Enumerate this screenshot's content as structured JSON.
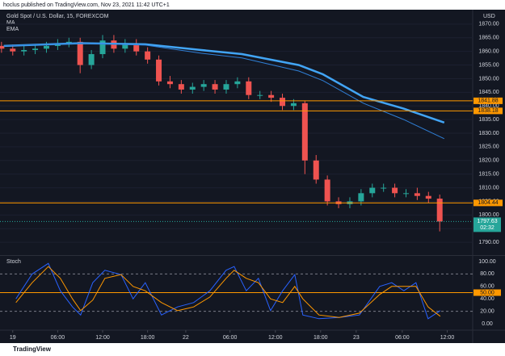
{
  "header": "hoclus published on TradingView.com, Nov 23, 2021 11:42 UTC+1",
  "footer": "TradingView",
  "chart_data": [
    {
      "type": "candlestick",
      "title": "Gold Spot / U.S. Dollar, 15, FOREXCOM",
      "y_axis_label": "USD",
      "up_color": "#26a69a",
      "down_color": "#ef5350",
      "xlim": [
        -1.7,
        61.4
      ],
      "ylim": [
        1785.6,
        1874.7
      ],
      "yticks": [
        {
          "value": 1790,
          "label": "1790.00"
        },
        {
          "value": 1795,
          "label": "1795.00"
        },
        {
          "value": 1800,
          "label": "1800.00"
        },
        {
          "value": 1805,
          "label": "1805.00"
        },
        {
          "value": 1810,
          "label": "1810.00"
        },
        {
          "value": 1815,
          "label": "1815.00"
        },
        {
          "value": 1820,
          "label": "1820.00"
        },
        {
          "value": 1825,
          "label": "1825.00"
        },
        {
          "value": 1830,
          "label": "1830.00"
        },
        {
          "value": 1835,
          "label": "1835.00"
        },
        {
          "value": 1840,
          "label": "1840.00"
        },
        {
          "value": 1845,
          "label": "1845.00"
        },
        {
          "value": 1850,
          "label": "1850.00"
        },
        {
          "value": 1855,
          "label": "1855.00"
        },
        {
          "value": 1860,
          "label": "1860.00"
        },
        {
          "value": 1865,
          "label": "1865.00"
        },
        {
          "value": 1870,
          "label": "1870.00"
        }
      ],
      "x": [
        -1.5,
        0,
        1.5,
        3,
        4.5,
        6,
        7.5,
        9,
        10.5,
        12,
        13.5,
        15,
        16.5,
        18,
        19.5,
        21,
        22.5,
        24,
        25.5,
        27,
        28.5,
        30,
        31.5,
        33,
        34.5,
        36,
        37.5,
        39,
        40.5,
        42,
        43.5,
        45,
        46.5,
        48,
        49.5,
        51,
        52.5,
        54,
        55.5,
        57
      ],
      "open": [
        1862,
        1861,
        1860,
        1860.5,
        1861,
        1862,
        1863,
        1863.5,
        1855,
        1859,
        1864,
        1861,
        1863,
        1860,
        1857,
        1849,
        1848,
        1846,
        1847,
        1848,
        1846,
        1848,
        1849,
        1844,
        1844,
        1843,
        1840,
        1841,
        1820,
        1813,
        1805,
        1804,
        1805,
        1808,
        1810,
        1810,
        1808,
        1808,
        1807,
        1806
      ],
      "high": [
        1863.5,
        1862.5,
        1862,
        1862.5,
        1863.5,
        1864.5,
        1865,
        1865,
        1860.5,
        1866,
        1866,
        1864.5,
        1864.5,
        1861.5,
        1858.5,
        1851,
        1849.5,
        1848.5,
        1849.5,
        1849.5,
        1849.5,
        1850.5,
        1850.5,
        1845.5,
        1845.5,
        1844.5,
        1842.5,
        1842,
        1822,
        1814.5,
        1806.5,
        1806.5,
        1809.5,
        1811.5,
        1811.5,
        1811.5,
        1809.5,
        1810,
        1808.5,
        1807.5
      ],
      "low": [
        1859.5,
        1858.5,
        1858.5,
        1859,
        1859.5,
        1860.5,
        1861.5,
        1852,
        1853.5,
        1857.5,
        1859.5,
        1859.5,
        1858.5,
        1855.5,
        1847.5,
        1846.5,
        1844.5,
        1844.5,
        1845.5,
        1844.5,
        1844.5,
        1846.5,
        1842.5,
        1842.5,
        1841.5,
        1838.5,
        1838.5,
        1815,
        1811.5,
        1803.5,
        1802.5,
        1802.5,
        1803.5,
        1806.5,
        1808.5,
        1806.5,
        1806.5,
        1805.5,
        1804.5,
        1794
      ],
      "close": [
        1861,
        1860,
        1860.5,
        1861,
        1862,
        1863,
        1863.5,
        1855,
        1859,
        1864,
        1861,
        1863,
        1860,
        1857,
        1849,
        1848,
        1846,
        1847,
        1848,
        1846,
        1848,
        1849,
        1844,
        1844,
        1843,
        1840,
        1841,
        1820,
        1813,
        1805,
        1804,
        1805,
        1808,
        1810,
        1810,
        1808,
        1808,
        1807,
        1806,
        1797.63
      ],
      "series": [
        {
          "name": "MA",
          "color": "#42a5f5",
          "width": 2.5,
          "x": [
            -1.2,
            9.06,
            17.7,
            25.2,
            30.6,
            38.2,
            41.4,
            46.8,
            52.2,
            57.6
          ],
          "values": [
            1862,
            1863,
            1862.6,
            1860.5,
            1859,
            1855,
            1851.6,
            1843.3,
            1839,
            1833.9
          ]
        },
        {
          "name": "EMA",
          "color": "#2f7fd6",
          "width": 1,
          "x": [
            -1.2,
            9.06,
            17.7,
            25.2,
            30.6,
            38.2,
            41.4,
            46.8,
            52.2,
            57.6
          ],
          "values": [
            1862,
            1863,
            1862.3,
            1859.3,
            1857.6,
            1852.8,
            1849.3,
            1841,
            1835,
            1828
          ]
        }
      ],
      "hlines": [
        1841.88,
        1838.18,
        1804.44
      ],
      "hline_color": "#ff9800",
      "last_price": 1797.63,
      "countdown": "02:32"
    },
    {
      "type": "line",
      "title": "Stoch",
      "xlim": [
        -1.7,
        61.4
      ],
      "ylim": [
        -9.1,
        107.8
      ],
      "xticks": [
        {
          "value": 0,
          "label": "19"
        },
        {
          "value": 6,
          "label": "06:00"
        },
        {
          "value": 12,
          "label": "12:00"
        },
        {
          "value": 18,
          "label": "18:00"
        },
        {
          "value": 23.1,
          "label": "22"
        },
        {
          "value": 29,
          "label": "06:00"
        },
        {
          "value": 35.06,
          "label": "12:00"
        },
        {
          "value": 41.1,
          "label": "18:00"
        },
        {
          "value": 45.85,
          "label": "23"
        },
        {
          "value": 52,
          "label": "06:00"
        },
        {
          "value": 58,
          "label": "12:00"
        }
      ],
      "yticks": [
        {
          "value": 0,
          "label": "0.00"
        },
        {
          "value": 20,
          "label": "20.00"
        },
        {
          "value": 40,
          "label": "40.00"
        },
        {
          "value": 60,
          "label": "60.00"
        },
        {
          "value": 80,
          "label": "80.00"
        },
        {
          "value": 100,
          "label": "100.00"
        }
      ],
      "hlines": [
        80,
        20
      ],
      "highlight_line": {
        "value": 50,
        "label": "50.00"
      },
      "highlight_color": "#ff9800",
      "x": [
        0.43,
        2.59,
        4.75,
        6.36,
        7.98,
        9.06,
        10.68,
        12.3,
        14.46,
        16.07,
        17.69,
        19.85,
        22.0,
        24.16,
        26.32,
        28.48,
        29.56,
        31.18,
        32.79,
        34.41,
        36.03,
        37.65,
        38.73,
        40.88,
        43.58,
        46.28,
        48.98,
        50.59,
        52.21,
        53.83,
        55.45,
        57.07
      ],
      "series": [
        {
          "name": "%K",
          "color": "#2962ff",
          "values": [
            40,
            80,
            97,
            53,
            27,
            14,
            66,
            86,
            79,
            40,
            66,
            14,
            27,
            34,
            53,
            86,
            92,
            53,
            73,
            21,
            53,
            79,
            14,
            8,
            10,
            14,
            60,
            66,
            53,
            66,
            8,
            21
          ]
        },
        {
          "name": "%D",
          "color": "#ff9800",
          "values": [
            34,
            66,
            92,
            73,
            40,
            21,
            38,
            73,
            79,
            60,
            53,
            34,
            21,
            27,
            43,
            73,
            86,
            73,
            66,
            40,
            34,
            60,
            40,
            14,
            10,
            17,
            47,
            60,
            60,
            60,
            27,
            12
          ]
        }
      ]
    }
  ]
}
